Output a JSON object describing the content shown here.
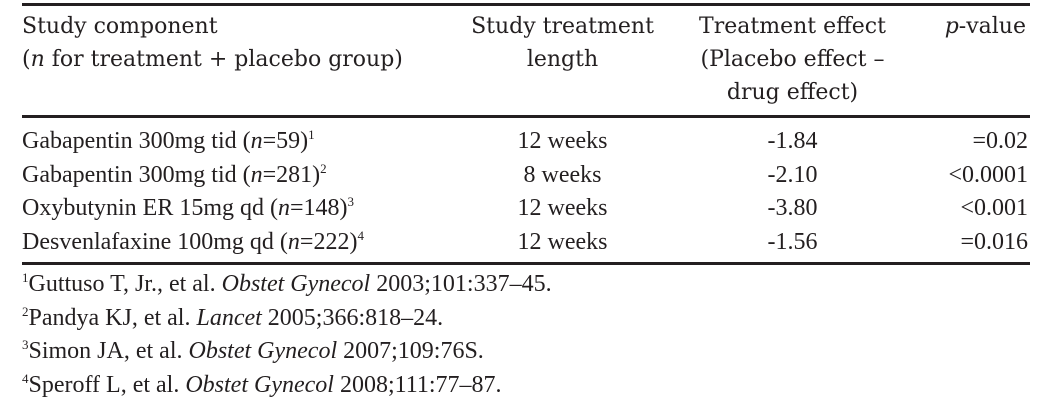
{
  "table": {
    "headers": {
      "component_line1": "Study component",
      "component_line2_n": "n",
      "component_line2_rest": " for treatment + placebo group)",
      "length_line1": "Study treatment",
      "length_line2": "length",
      "effect_line1": "Treatment effect",
      "effect_line2": "(Placebo effect –",
      "effect_line3": "drug effect)",
      "p_italic": "p",
      "p_rest": "-value"
    },
    "rows": [
      {
        "drug": "Gabapentin 300mg tid (",
        "n": "=59)",
        "ref": "1",
        "length": "12 weeks",
        "effect": "-1.84",
        "p": "=0.02"
      },
      {
        "drug": "Gabapentin 300mg tid (",
        "n": "=281)",
        "ref": "2",
        "length": "8 weeks",
        "effect": "-2.10",
        "p": "<0.0001"
      },
      {
        "drug": "Oxybutynin ER 15mg qd (",
        "n": "=148)",
        "ref": "3",
        "length": "12 weeks",
        "effect": "-3.80",
        "p": "<0.001"
      },
      {
        "drug": "Desvenlafaxine 100mg qd (",
        "n": "=222)",
        "ref": "4",
        "length": "12 weeks",
        "effect": "-1.56",
        "p": "=0.016"
      }
    ],
    "n_symbol": "n"
  },
  "footnotes": [
    {
      "num": "1",
      "authors": "Guttuso T, Jr., et al. ",
      "journal": "Obstet Gynecol",
      "cite": " 2003;101:337–45."
    },
    {
      "num": "2",
      "authors": "Pandya KJ, et al. ",
      "journal": "Lancet",
      "cite": " 2005;366:818–24."
    },
    {
      "num": "3",
      "authors": "Simon JA, et al. ",
      "journal": "Obstet Gynecol",
      "cite": " 2007;109:76S."
    },
    {
      "num": "4",
      "authors": "Speroff L, et al. ",
      "journal": "Obstet Gynecol",
      "cite": " 2008;111:77–87."
    }
  ]
}
